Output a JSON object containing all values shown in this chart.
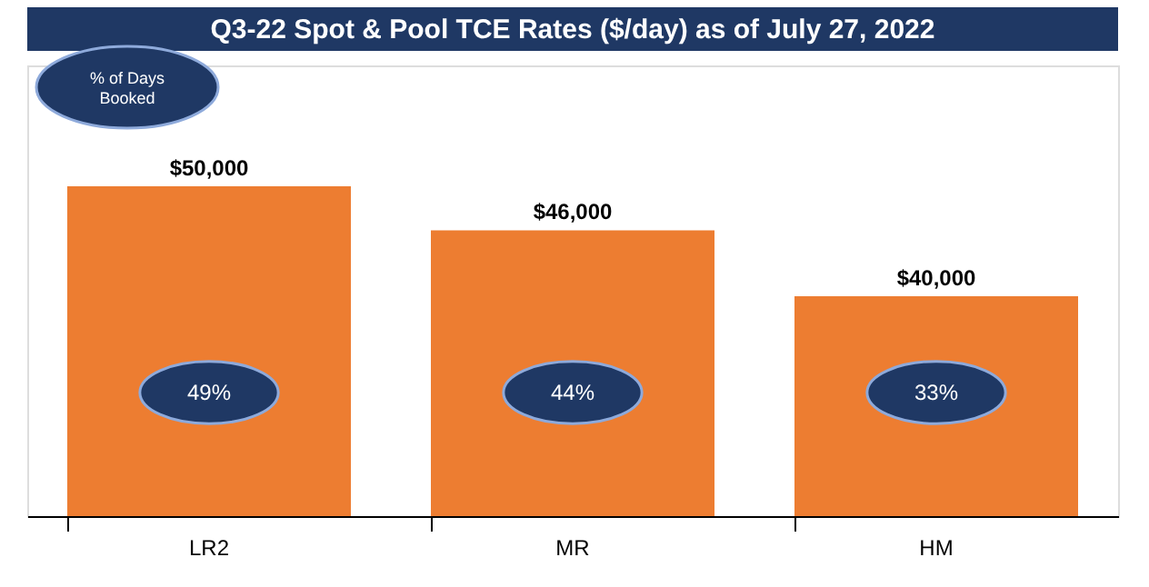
{
  "chart_data": {
    "type": "bar",
    "title": "Q3-22 Spot & Pool TCE Rates ($/day) as of July 27, 2022",
    "categories": [
      "LR2",
      "MR",
      "HM"
    ],
    "values": [
      50000,
      46000,
      40000
    ],
    "color": "#ed7d31",
    "value_labels": [
      "$50,000",
      "$46,000",
      "$40,000"
    ],
    "ylim": [
      20000,
      61000
    ],
    "tick_labels": "x",
    "grid": false,
    "annotations": [
      "% of Days Booked",
      "49%",
      "44%",
      "33%"
    ]
  }
}
